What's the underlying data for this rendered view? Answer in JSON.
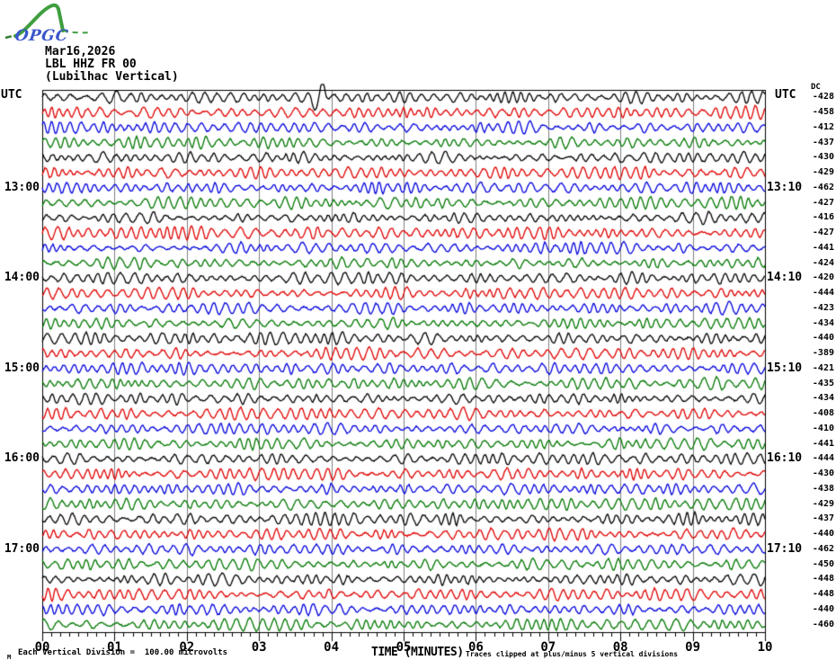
{
  "logo": {
    "text": "OPGC",
    "curve_color": "#3f9e3f",
    "text_color": "#3a56cc"
  },
  "header": {
    "date": "Mar16,2026",
    "station_code": "LBL HHZ FR 00",
    "station_name": "(Lubilhac Vertical)"
  },
  "axis": {
    "left_unit": "UTC",
    "right_unit": "UTC",
    "dc_header": "DC",
    "xlabel": "TIME (MINUTES)",
    "x_ticks": [
      "00",
      "01",
      "02",
      "03",
      "04",
      "05",
      "06",
      "07",
      "08",
      "09",
      "10"
    ]
  },
  "footer": {
    "scale_note": "Each Vertical Division =  100.00 microvolts",
    "clip_note": "Traces clipped at plus/minus 5 vertical divisions",
    "corner_mark": "M"
  },
  "chart_data": {
    "type": "line",
    "subtype": "helicorder-seismogram",
    "title": "LBL HHZ FR 00 (Lubilhac Vertical) Mar16,2026",
    "xlabel": "TIME (MINUTES)",
    "x_range_minutes": [
      0,
      10
    ],
    "minutes_per_row": 10,
    "minor_ticks_per_minute": 8,
    "grid": "vertical gray lines at each minute",
    "trace_color_cycle": [
      "#000000",
      "#e00000",
      "#0000dd",
      "#007700"
    ],
    "grid_color": "#808080",
    "clip_limit_divisions": 5,
    "microvolts_per_division": 100.0,
    "rows": [
      {
        "left": "",
        "right": "",
        "dc": -428,
        "color": "#000000"
      },
      {
        "left": "",
        "right": "",
        "dc": -458,
        "color": "#e00000"
      },
      {
        "left": "",
        "right": "",
        "dc": -412,
        "color": "#0000dd"
      },
      {
        "left": "",
        "right": "",
        "dc": -437,
        "color": "#007700"
      },
      {
        "left": "",
        "right": "",
        "dc": -430,
        "color": "#000000"
      },
      {
        "left": "",
        "right": "",
        "dc": -429,
        "color": "#e00000"
      },
      {
        "left": "13:00",
        "right": "13:10",
        "dc": -462,
        "color": "#0000dd"
      },
      {
        "left": "",
        "right": "",
        "dc": -427,
        "color": "#007700"
      },
      {
        "left": "",
        "right": "",
        "dc": -416,
        "color": "#000000"
      },
      {
        "left": "",
        "right": "",
        "dc": -427,
        "color": "#e00000"
      },
      {
        "left": "",
        "right": "",
        "dc": -441,
        "color": "#0000dd"
      },
      {
        "left": "",
        "right": "",
        "dc": -424,
        "color": "#007700"
      },
      {
        "left": "14:00",
        "right": "14:10",
        "dc": -420,
        "color": "#000000"
      },
      {
        "left": "",
        "right": "",
        "dc": -444,
        "color": "#e00000"
      },
      {
        "left": "",
        "right": "",
        "dc": -423,
        "color": "#0000dd"
      },
      {
        "left": "",
        "right": "",
        "dc": -434,
        "color": "#007700"
      },
      {
        "left": "",
        "right": "",
        "dc": -440,
        "color": "#000000"
      },
      {
        "left": "",
        "right": "",
        "dc": -389,
        "color": "#e00000"
      },
      {
        "left": "15:00",
        "right": "15:10",
        "dc": -421,
        "color": "#0000dd"
      },
      {
        "left": "",
        "right": "",
        "dc": -435,
        "color": "#007700"
      },
      {
        "left": "",
        "right": "",
        "dc": -434,
        "color": "#000000"
      },
      {
        "left": "",
        "right": "",
        "dc": -408,
        "color": "#e00000"
      },
      {
        "left": "",
        "right": "",
        "dc": -410,
        "color": "#0000dd"
      },
      {
        "left": "",
        "right": "",
        "dc": -441,
        "color": "#007700"
      },
      {
        "left": "16:00",
        "right": "16:10",
        "dc": -444,
        "color": "#000000"
      },
      {
        "left": "",
        "right": "",
        "dc": -430,
        "color": "#e00000"
      },
      {
        "left": "",
        "right": "",
        "dc": -438,
        "color": "#0000dd"
      },
      {
        "left": "",
        "right": "",
        "dc": -429,
        "color": "#007700"
      },
      {
        "left": "",
        "right": "",
        "dc": -437,
        "color": "#000000"
      },
      {
        "left": "",
        "right": "",
        "dc": -440,
        "color": "#e00000"
      },
      {
        "left": "17:00",
        "right": "17:10",
        "dc": -462,
        "color": "#0000dd"
      },
      {
        "left": "",
        "right": "",
        "dc": -450,
        "color": "#007700"
      },
      {
        "left": "",
        "right": "",
        "dc": -448,
        "color": "#000000"
      },
      {
        "left": "",
        "right": "",
        "dc": -448,
        "color": "#e00000"
      },
      {
        "left": "",
        "right": "",
        "dc": -440,
        "color": "#0000dd"
      },
      {
        "left": "",
        "right": "",
        "dc": -460,
        "color": "#007700"
      }
    ]
  }
}
